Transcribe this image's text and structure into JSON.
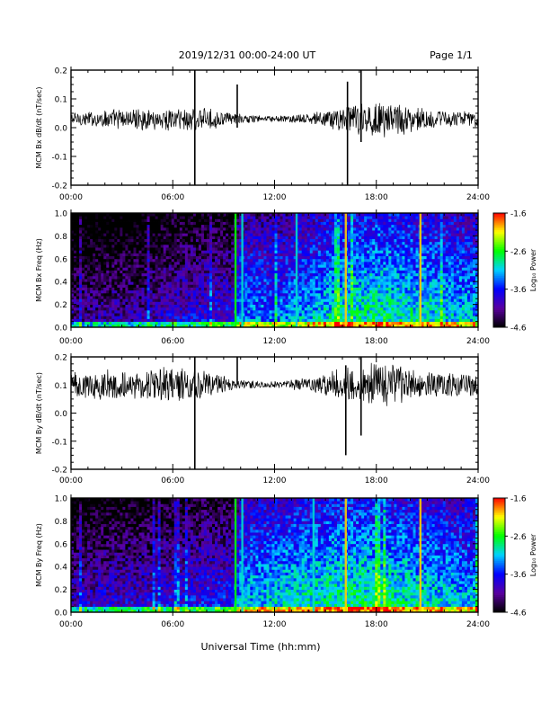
{
  "header": {
    "date_range": "2019/12/31  00:00-24:00 UT",
    "page": "Page 1/1"
  },
  "xlabel": "Universal Time (hh:mm)",
  "x_ticks": [
    "00:00",
    "06:00",
    "12:00",
    "18:00",
    "24:00"
  ],
  "colorbar_label": "Log₁₀ Power",
  "chart_data": [
    {
      "type": "line",
      "title": "",
      "xlabel": "",
      "ylabel": "MCM Bx dB/dt (nT/sec)",
      "xlim": [
        0,
        24
      ],
      "ylim": [
        -0.2,
        0.2
      ],
      "y_ticks": [
        "0.2",
        "0.1",
        "0.0",
        "-0.1",
        "-0.2"
      ],
      "y_tick_values": [
        0.2,
        0.1,
        0.0,
        -0.1,
        -0.2
      ],
      "baseline": 0.03,
      "envelope_hours": [
        0,
        1,
        2,
        3,
        4,
        5,
        6,
        7,
        8,
        9,
        10,
        11,
        12,
        13,
        14,
        15,
        16,
        17,
        18,
        19,
        20,
        21,
        22,
        23,
        24
      ],
      "envelope_amplitude": [
        0.03,
        0.03,
        0.035,
        0.04,
        0.04,
        0.04,
        0.045,
        0.05,
        0.04,
        0.03,
        0.02,
        0.015,
        0.012,
        0.015,
        0.02,
        0.035,
        0.05,
        0.065,
        0.075,
        0.07,
        0.05,
        0.04,
        0.035,
        0.03,
        0.03
      ],
      "spikes": [
        {
          "hour": 7.3,
          "min": -0.2,
          "max": 0.2
        },
        {
          "hour": 9.8,
          "min": 0.0,
          "max": 0.15
        },
        {
          "hour": 16.3,
          "min": -0.2,
          "max": 0.16
        },
        {
          "hour": 17.1,
          "min": -0.05,
          "max": 0.2
        }
      ]
    },
    {
      "type": "heatmap",
      "title": "",
      "xlabel": "",
      "ylabel": "MCM Bx Freq (Hz)",
      "xlim": [
        0,
        24
      ],
      "ylim": [
        0,
        1.0
      ],
      "y_ticks": [
        "1.0",
        "0.8",
        "0.6",
        "0.4",
        "0.2",
        "0.0"
      ],
      "y_tick_values": [
        1.0,
        0.8,
        0.6,
        0.4,
        0.2,
        0.0
      ],
      "colorbar_ticks": [
        "-1.6",
        "-2.6",
        "-3.6",
        "-4.6"
      ],
      "colorbar_range": [
        -4.6,
        -1.6
      ],
      "colormap": [
        "#000000",
        "#5a00a0",
        "#0000ff",
        "#00d2ff",
        "#00ff00",
        "#ffff00",
        "#ff0000"
      ],
      "level_hours": [
        0,
        2,
        4,
        6,
        8,
        9.5,
        10,
        12,
        14,
        16,
        18,
        20,
        22,
        24
      ],
      "level_values": [
        -4.3,
        -4.2,
        -4.2,
        -4.0,
        -3.9,
        -3.9,
        -3.4,
        -3.5,
        -3.3,
        -3.1,
        -3.0,
        -3.1,
        -3.2,
        -3.3
      ],
      "vertical_lines": [
        {
          "hour": 9.7,
          "level": -2.6
        },
        {
          "hour": 10.1,
          "level": -3.0
        },
        {
          "hour": 13.3,
          "level": -3.0
        },
        {
          "hour": 16.2,
          "level": -2.0
        },
        {
          "hour": 20.6,
          "level": -2.0
        }
      ]
    },
    {
      "type": "line",
      "title": "",
      "xlabel": "",
      "ylabel": "MCM By dB/dt (nT/sec)",
      "xlim": [
        0,
        24
      ],
      "ylim": [
        -0.2,
        0.2
      ],
      "y_ticks": [
        "0.2",
        "0.1",
        "0.0",
        "-0.1",
        "-0.2"
      ],
      "y_tick_values": [
        0.2,
        0.1,
        0.0,
        -0.1,
        -0.2
      ],
      "baseline": 0.1,
      "envelope_hours": [
        0,
        1,
        2,
        3,
        4,
        5,
        6,
        7,
        8,
        9,
        10,
        11,
        12,
        13,
        14,
        15,
        16,
        17,
        18,
        19,
        20,
        21,
        22,
        23,
        24
      ],
      "envelope_amplitude": [
        0.05,
        0.055,
        0.06,
        0.06,
        0.065,
        0.07,
        0.075,
        0.07,
        0.05,
        0.035,
        0.02,
        0.015,
        0.015,
        0.02,
        0.03,
        0.05,
        0.07,
        0.085,
        0.09,
        0.08,
        0.065,
        0.055,
        0.05,
        0.045,
        0.045
      ],
      "spikes": [
        {
          "hour": 7.3,
          "min": -0.2,
          "max": 0.2
        },
        {
          "hour": 9.8,
          "min": 0.1,
          "max": 0.2
        },
        {
          "hour": 16.2,
          "min": -0.15,
          "max": 0.17
        },
        {
          "hour": 17.1,
          "min": -0.08,
          "max": 0.2
        }
      ]
    },
    {
      "type": "heatmap",
      "title": "",
      "xlabel": "",
      "ylabel": "MCM By Freq (Hz)",
      "xlim": [
        0,
        24
      ],
      "ylim": [
        0,
        1.0
      ],
      "y_ticks": [
        "1.0",
        "0.8",
        "0.6",
        "0.4",
        "0.2",
        "0.0"
      ],
      "y_tick_values": [
        1.0,
        0.8,
        0.6,
        0.4,
        0.2,
        0.0
      ],
      "colorbar_ticks": [
        "-1.6",
        "-2.6",
        "-3.6",
        "-4.6"
      ],
      "colorbar_range": [
        -4.6,
        -1.6
      ],
      "colormap": [
        "#000000",
        "#5a00a0",
        "#0000ff",
        "#00d2ff",
        "#00ff00",
        "#ffff00",
        "#ff0000"
      ],
      "level_hours": [
        0,
        2,
        4,
        6,
        8,
        9.5,
        10,
        12,
        14,
        16,
        18,
        20,
        22,
        24
      ],
      "level_values": [
        -4.1,
        -4.0,
        -4.0,
        -3.9,
        -3.8,
        -3.8,
        -3.3,
        -3.2,
        -3.1,
        -3.0,
        -3.0,
        -3.1,
        -3.2,
        -3.3
      ],
      "vertical_lines": [
        {
          "hour": 9.7,
          "level": -2.6
        },
        {
          "hour": 10.1,
          "level": -3.0
        },
        {
          "hour": 14.3,
          "level": -3.0
        },
        {
          "hour": 16.2,
          "level": -2.0
        },
        {
          "hour": 20.6,
          "level": -2.0
        }
      ]
    }
  ]
}
